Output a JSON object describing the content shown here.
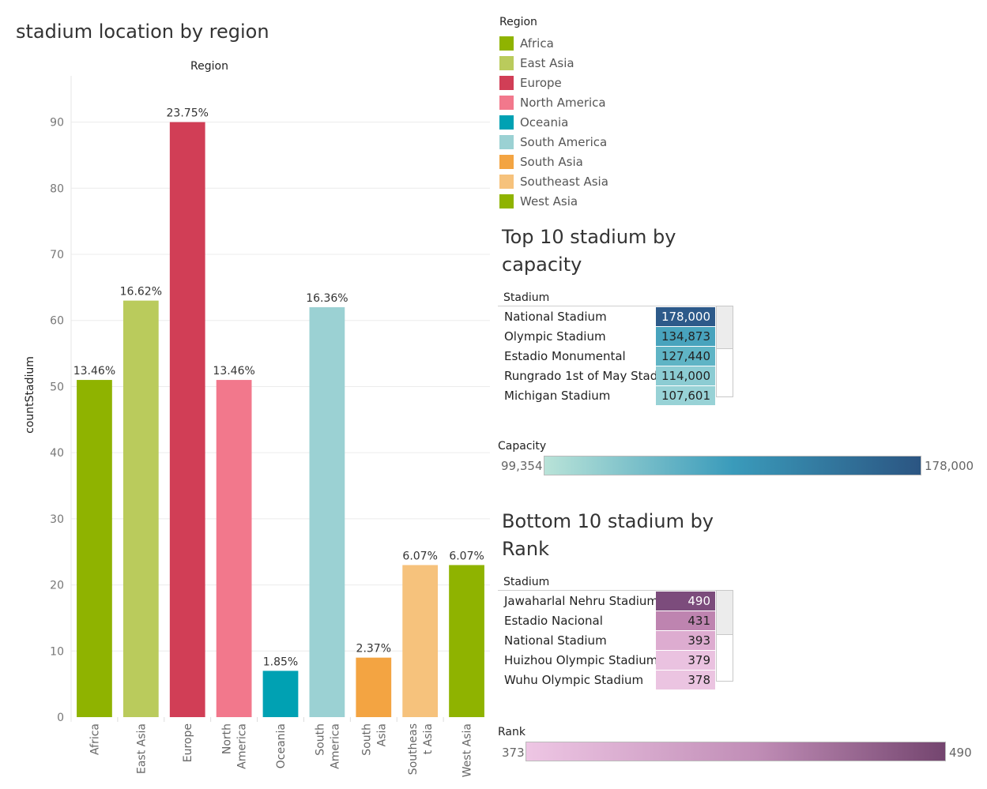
{
  "chart_title": "stadium location by region",
  "chart_data": {
    "type": "bar",
    "title": "stadium location by region",
    "top_header": "Region",
    "xlabel": "",
    "ylabel": "countStadium",
    "ylim": [
      0,
      97
    ],
    "yticks": [
      0,
      10,
      20,
      30,
      40,
      50,
      60,
      70,
      80,
      90
    ],
    "grid": true,
    "categories": [
      "Africa",
      "East Asia",
      "Europe",
      "North America",
      "Oceania",
      "South America",
      "South Asia",
      "Southeast Asia",
      "West Asia"
    ],
    "category_tick_lines": [
      [
        "Africa"
      ],
      [
        "East Asia"
      ],
      [
        "Europe"
      ],
      [
        "North",
        "America"
      ],
      [
        "Oceania"
      ],
      [
        "South",
        "America"
      ],
      [
        "South",
        "Asia"
      ],
      [
        "Southeas",
        "t Asia"
      ],
      [
        "West Asia"
      ]
    ],
    "values": [
      51,
      63,
      90,
      51,
      7,
      62,
      9,
      23,
      23
    ],
    "labels": [
      "13.46%",
      "16.62%",
      "23.75%",
      "13.46%",
      "1.85%",
      "16.36%",
      "2.37%",
      "6.07%",
      "6.07%"
    ],
    "colors": [
      "#8fb300",
      "#bacb5c",
      "#d13e56",
      "#f2788c",
      "#00a1b3",
      "#9bd1d3",
      "#f3a442",
      "#f6c27c",
      "#8fb300"
    ]
  },
  "legend": {
    "title": "Region",
    "items": [
      {
        "label": "Africa",
        "color": "#8fb300"
      },
      {
        "label": "East Asia",
        "color": "#bacb5c"
      },
      {
        "label": "Europe",
        "color": "#d13e56"
      },
      {
        "label": "North America",
        "color": "#f2788c"
      },
      {
        "label": "Oceania",
        "color": "#00a1b3"
      },
      {
        "label": "South America",
        "color": "#9bd1d3"
      },
      {
        "label": "South Asia",
        "color": "#f3a442"
      },
      {
        "label": "Southeast Asia",
        "color": "#f6c27c"
      },
      {
        "label": "West Asia",
        "color": "#8fb300"
      }
    ]
  },
  "top10": {
    "title_line1": "Top 10 stadium by",
    "title_line2": "capacity",
    "column_header": "Stadium",
    "rows": [
      {
        "name": "National Stadium",
        "value": "178,000",
        "bg": "#2d5a8a",
        "fg": "#ffffff"
      },
      {
        "name": "Olympic Stadium",
        "value": "134,873",
        "bg": "#48a3bd",
        "fg": "#222222"
      },
      {
        "name": "Estadio Monumental",
        "value": "127,440",
        "bg": "#5fb4c5",
        "fg": "#222222"
      },
      {
        "name": "Rungrado 1st of May Stad..",
        "value": "114,000",
        "bg": "#8cccd3",
        "fg": "#222222"
      },
      {
        "name": "Michigan Stadium",
        "value": "107,601",
        "bg": "#98d2d6",
        "fg": "#222222"
      }
    ]
  },
  "capacity_scale": {
    "title": "Capacity",
    "min": "99,354",
    "max": "178,000",
    "color_start": "#b9e3d8",
    "color_mid": "#3a9bbb",
    "color_end": "#2b5582"
  },
  "bottom10": {
    "title_line1": "Bottom 10 stadium by",
    "title_line2": "Rank",
    "column_header": "Stadium",
    "rows": [
      {
        "name": "Jawaharlal Nehru Stadium",
        "value": "490",
        "bg": "#7c4c7c",
        "fg": "#ffffff"
      },
      {
        "name": "Estadio Nacional",
        "value": "431",
        "bg": "#be84b0",
        "fg": "#222222"
      },
      {
        "name": "National Stadium",
        "value": "393",
        "bg": "#ddacd0",
        "fg": "#222222"
      },
      {
        "name": "Huizhou Olympic Stadium",
        "value": "379",
        "bg": "#eac2e0",
        "fg": "#222222"
      },
      {
        "name": "Wuhu Olympic Stadium",
        "value": "378",
        "bg": "#ebc4e1",
        "fg": "#222222"
      }
    ]
  },
  "rank_scale": {
    "title": "Rank",
    "min": "373",
    "max": "490",
    "color_start": "#eec6e4",
    "color_mid": "#c08db6",
    "color_end": "#74456f"
  }
}
